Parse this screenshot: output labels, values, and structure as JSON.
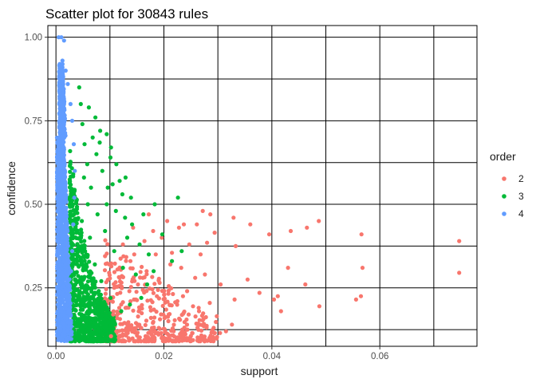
{
  "chart_data": {
    "type": "scatter",
    "title": "Scatter plot for 30843 rules",
    "xlabel": "support",
    "ylabel": "confidence",
    "xlim": [
      -0.0015,
      0.078
    ],
    "ylim": [
      0.075,
      1.035
    ],
    "x_ticks": [
      0.0,
      0.02,
      0.04,
      0.06
    ],
    "x_tick_labels": [
      "0.00",
      "0.02",
      "0.04",
      "0.06"
    ],
    "y_ticks": [
      0.25,
      0.5,
      0.75,
      1.0
    ],
    "y_tick_labels": [
      "0.25",
      "0.50",
      "0.75",
      "1.00"
    ],
    "grid": true,
    "legend": {
      "title": "order",
      "placement": "right"
    },
    "series": [
      {
        "name": "2",
        "color": "#F8766D",
        "points": [
          [
            0.0747,
            0.39
          ],
          [
            0.0747,
            0.295
          ],
          [
            0.0566,
            0.41
          ],
          [
            0.0568,
            0.31
          ],
          [
            0.0565,
            0.225
          ],
          [
            0.0556,
            0.215
          ],
          [
            0.0487,
            0.45
          ],
          [
            0.0488,
            0.195
          ],
          [
            0.0465,
            0.43
          ],
          [
            0.0462,
            0.26
          ],
          [
            0.0435,
            0.42
          ],
          [
            0.043,
            0.31
          ],
          [
            0.0417,
            0.18
          ],
          [
            0.0411,
            0.225
          ],
          [
            0.0404,
            0.215
          ],
          [
            0.0395,
            0.41
          ],
          [
            0.0377,
            0.235
          ],
          [
            0.036,
            0.44
          ],
          [
            0.0355,
            0.275
          ],
          [
            0.0333,
            0.375
          ],
          [
            0.0329,
            0.46
          ],
          [
            0.0331,
            0.215
          ],
          [
            0.0326,
            0.14
          ],
          [
            0.0315,
            0.12
          ],
          [
            0.0294,
            0.415
          ],
          [
            0.0286,
            0.47
          ],
          [
            0.028,
            0.385
          ],
          [
            0.0276,
            0.29
          ],
          [
            0.0272,
            0.48
          ],
          [
            0.0261,
            0.44
          ],
          [
            0.0247,
            0.38
          ],
          [
            0.0243,
            0.24
          ],
          [
            0.0237,
            0.44
          ],
          [
            0.0232,
            0.31
          ],
          [
            0.0228,
            0.43
          ],
          [
            0.0215,
            0.355
          ],
          [
            0.0212,
            0.32
          ],
          [
            0.0209,
            0.255
          ],
          [
            0.0206,
            0.45
          ],
          [
            0.0202,
            0.12
          ],
          [
            0.0196,
            0.4
          ],
          [
            0.0192,
            0.265
          ],
          [
            0.0185,
            0.35
          ],
          [
            0.018,
            0.42
          ],
          [
            0.0176,
            0.16
          ],
          [
            0.0172,
            0.47
          ],
          [
            0.0168,
            0.3
          ],
          [
            0.0164,
            0.39
          ],
          [
            0.0158,
            0.13
          ],
          [
            0.0152,
            0.26
          ],
          [
            0.0148,
            0.215
          ],
          [
            0.0143,
            0.43
          ],
          [
            0.0138,
            0.33
          ],
          [
            0.0134,
            0.14
          ],
          [
            0.0129,
            0.19
          ],
          [
            0.0124,
            0.38
          ],
          [
            0.0118,
            0.28
          ],
          [
            0.0112,
            0.12
          ],
          [
            0.0108,
            0.25
          ],
          [
            0.0102,
            0.105
          ],
          [
            0.0285,
            0.205
          ],
          [
            0.0265,
            0.18
          ],
          [
            0.0254,
            0.195
          ],
          [
            0.0298,
            0.165
          ],
          [
            0.0305,
            0.26
          ],
          [
            0.0225,
            0.21
          ],
          [
            0.0218,
            0.12
          ],
          [
            0.0199,
            0.17
          ],
          [
            0.0187,
            0.225
          ],
          [
            0.0171,
            0.115
          ],
          [
            0.0161,
            0.28
          ],
          [
            0.0155,
            0.185
          ],
          [
            0.0145,
            0.35
          ],
          [
            0.0136,
            0.24
          ],
          [
            0.0127,
            0.145
          ],
          [
            0.0121,
            0.2
          ],
          [
            0.0114,
            0.305
          ],
          [
            0.0106,
            0.17
          ],
          [
            0.0268,
            0.35
          ],
          [
            0.0258,
            0.28
          ],
          [
            0.0242,
            0.155
          ],
          [
            0.0234,
            0.125
          ],
          [
            0.0178,
            0.13
          ],
          [
            0.019,
            0.11
          ],
          [
            0.0304,
            0.115
          ],
          [
            0.0274,
            0.135
          ],
          [
            0.0248,
            0.1
          ],
          [
            0.0208,
            0.11
          ],
          [
            0.0166,
            0.105
          ],
          [
            0.0133,
            0.115
          ]
        ]
      },
      {
        "name": "3",
        "color": "#00BA38",
        "points": [
          [
            0.0226,
            0.52
          ],
          [
            0.0183,
            0.5
          ],
          [
            0.0139,
            0.52
          ],
          [
            0.0123,
            0.53
          ],
          [
            0.0118,
            0.57
          ],
          [
            0.0112,
            0.62
          ],
          [
            0.0102,
            0.67
          ],
          [
            0.0094,
            0.71
          ],
          [
            0.0082,
            0.72
          ],
          [
            0.0061,
            0.79
          ],
          [
            0.0073,
            0.76
          ],
          [
            0.0081,
            0.685
          ],
          [
            0.0101,
            0.64
          ],
          [
            0.0129,
            0.58
          ],
          [
            0.0105,
            0.56
          ],
          [
            0.0094,
            0.5
          ],
          [
            0.0128,
            0.46
          ],
          [
            0.0141,
            0.44
          ],
          [
            0.0155,
            0.38
          ],
          [
            0.0172,
            0.35
          ],
          [
            0.0181,
            0.3
          ],
          [
            0.0169,
            0.26
          ],
          [
            0.0148,
            0.29
          ],
          [
            0.0124,
            0.31
          ],
          [
            0.0108,
            0.36
          ],
          [
            0.0091,
            0.42
          ],
          [
            0.0077,
            0.47
          ],
          [
            0.0065,
            0.55
          ],
          [
            0.0058,
            0.62
          ],
          [
            0.0053,
            0.68
          ],
          [
            0.0049,
            0.74
          ],
          [
            0.0046,
            0.8
          ],
          [
            0.0043,
            0.85
          ],
          [
            0.0084,
            0.27
          ],
          [
            0.0101,
            0.22
          ],
          [
            0.0121,
            0.18
          ],
          [
            0.0137,
            0.2
          ],
          [
            0.0158,
            0.22
          ],
          [
            0.0072,
            0.32
          ],
          [
            0.0063,
            0.4
          ],
          [
            0.0215,
            0.33
          ],
          [
            0.0233,
            0.36
          ],
          [
            0.0197,
            0.41
          ],
          [
            0.0162,
            0.47
          ],
          [
            0.0086,
            0.6
          ],
          [
            0.0075,
            0.65
          ],
          [
            0.0068,
            0.7
          ],
          [
            0.0096,
            0.55
          ],
          [
            0.0111,
            0.48
          ],
          [
            0.0132,
            0.4
          ],
          [
            0.0059,
            0.5
          ],
          [
            0.0052,
            0.58
          ],
          [
            0.0048,
            0.45
          ],
          [
            0.0056,
            0.35
          ]
        ]
      },
      {
        "name": "4",
        "color": "#619CFF",
        "points": [
          [
            0.001,
            1.0
          ],
          [
            0.0005,
            1.0
          ],
          [
            0.0015,
            0.99
          ],
          [
            0.0012,
            0.93
          ],
          [
            0.0018,
            0.9
          ],
          [
            0.0022,
            0.86
          ],
          [
            0.0027,
            0.8
          ],
          [
            0.003,
            0.75
          ],
          [
            0.0033,
            0.68
          ],
          [
            0.0035,
            0.6
          ],
          [
            0.0034,
            0.52
          ],
          [
            0.0032,
            0.44
          ],
          [
            0.003,
            0.36
          ],
          [
            0.0028,
            0.3
          ],
          [
            0.0024,
            0.22
          ]
        ]
      }
    ],
    "dense_region": {
      "series_4": {
        "x_range": [
          0.0002,
          0.0026
        ],
        "y_range": [
          0.09,
          0.9
        ]
      },
      "series_3": {
        "x_range": [
          0.0025,
          0.011
        ],
        "y_range": [
          0.09,
          0.6
        ]
      },
      "series_2": {
        "x_range": [
          0.009,
          0.03
        ],
        "y_range": [
          0.09,
          0.35
        ]
      }
    }
  }
}
